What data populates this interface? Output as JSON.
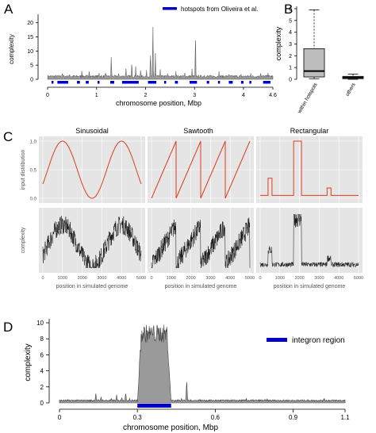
{
  "panels": {
    "A": {
      "letter": "A",
      "xlabel": "chromosome position, Mbp",
      "ylabel": "complexity",
      "legend": "hotspots from Oliveira et al.",
      "x_ticks": [
        "0",
        "1",
        "2",
        "3",
        "4",
        "4.6"
      ],
      "y_ticks": [
        "0",
        "5",
        "10",
        "15",
        "20"
      ]
    },
    "B": {
      "letter": "B",
      "ylabel": "complexity",
      "categories": [
        "within hotspots",
        "others"
      ],
      "y_ticks": [
        "0",
        "1",
        "2",
        "3",
        "4",
        "5",
        "6"
      ]
    },
    "C": {
      "letter": "C",
      "titles": [
        "Sinusoidal",
        "Sawtooth",
        "Rectangular"
      ],
      "top_ylabel": "input distribution",
      "bottom_ylabel": "complexity",
      "xlabel": "position in simulated genome",
      "top_y_ticks": [
        "0.0",
        "0.5",
        "1.0"
      ],
      "x_ticks": [
        "0",
        "1000",
        "2000",
        "3000",
        "4000",
        "5000"
      ]
    },
    "D": {
      "letter": "D",
      "xlabel": "chromosome position, Mbp",
      "ylabel": "complexity",
      "legend": "integron region",
      "x_ticks": [
        "0",
        "0.3",
        "0.6",
        "0.9",
        "1.1"
      ],
      "y_ticks": [
        "0",
        "2",
        "4",
        "6",
        "8",
        "10"
      ]
    }
  },
  "colors": {
    "hotspot_blue": "#0000cc",
    "input_red": "#e03b1e",
    "panel_bg": "#e5e5e5",
    "area_gray": "#9a9a9a",
    "box_fill": "#bdbdbd"
  },
  "chart_data": [
    {
      "type": "area",
      "panel": "A",
      "xlabel": "chromosome position, Mbp",
      "ylabel": "complexity",
      "xlim": [
        0,
        4.6
      ],
      "ylim": [
        0,
        23
      ],
      "series": [
        {
          "name": "hotspots from Oliveira et al."
        }
      ],
      "peaks": [
        {
          "x": 0.3,
          "y": 3.0
        },
        {
          "x": 0.45,
          "y": 2.0
        },
        {
          "x": 0.7,
          "y": 3.5
        },
        {
          "x": 0.85,
          "y": 4.0
        },
        {
          "x": 1.05,
          "y": 2.5
        },
        {
          "x": 1.18,
          "y": 3.0
        },
        {
          "x": 1.3,
          "y": 9.5
        },
        {
          "x": 1.45,
          "y": 3.0
        },
        {
          "x": 1.6,
          "y": 4.5
        },
        {
          "x": 1.72,
          "y": 7.0
        },
        {
          "x": 1.8,
          "y": 5.0
        },
        {
          "x": 1.9,
          "y": 4.0
        },
        {
          "x": 2.02,
          "y": 3.5
        },
        {
          "x": 2.1,
          "y": 11.0
        },
        {
          "x": 2.15,
          "y": 22.5
        },
        {
          "x": 2.2,
          "y": 10.5
        },
        {
          "x": 2.3,
          "y": 3.5
        },
        {
          "x": 2.45,
          "y": 2.5
        },
        {
          "x": 2.62,
          "y": 3.0
        },
        {
          "x": 2.8,
          "y": 2.5
        },
        {
          "x": 2.95,
          "y": 4.0
        },
        {
          "x": 3.02,
          "y": 18.0
        },
        {
          "x": 3.2,
          "y": 2.0
        },
        {
          "x": 3.5,
          "y": 3.0
        },
        {
          "x": 3.7,
          "y": 2.5
        },
        {
          "x": 3.95,
          "y": 2.0
        },
        {
          "x": 4.15,
          "y": 2.5
        },
        {
          "x": 4.35,
          "y": 3.0
        },
        {
          "x": 4.5,
          "y": 2.5
        }
      ],
      "hotspots": [
        [
          0.08,
          0.12
        ],
        [
          0.2,
          0.42
        ],
        [
          0.6,
          0.66
        ],
        [
          0.78,
          0.84
        ],
        [
          1.02,
          1.06
        ],
        [
          1.28,
          1.36
        ],
        [
          1.52,
          1.86
        ],
        [
          2.05,
          2.22
        ],
        [
          2.38,
          2.42
        ],
        [
          2.6,
          2.66
        ],
        [
          2.9,
          3.05
        ],
        [
          3.25,
          3.3
        ],
        [
          3.48,
          3.52
        ],
        [
          3.7,
          3.78
        ],
        [
          3.95,
          4.0
        ],
        [
          4.12,
          4.16
        ],
        [
          4.4,
          4.55
        ]
      ]
    },
    {
      "type": "box",
      "panel": "B",
      "ylabel": "complexity",
      "categories": [
        "within hotspots",
        "others"
      ],
      "ylim": [
        0,
        6.2
      ],
      "boxes": [
        {
          "whisker_low": 0.05,
          "q1": 0.2,
          "median": 0.7,
          "q3": 2.6,
          "whisker_high": 5.9
        },
        {
          "whisker_low": 0.0,
          "q1": 0.05,
          "median": 0.15,
          "q3": 0.25,
          "whisker_high": 0.45
        }
      ]
    },
    {
      "type": "line",
      "panel": "C",
      "titles": [
        "Sinusoidal",
        "Sawtooth",
        "Rectangular"
      ],
      "xlabel": "position in simulated genome",
      "top_ylabel": "input distribution",
      "bottom_ylabel": "complexity",
      "xlim": [
        0,
        5000
      ],
      "top_ylim": [
        0,
        1
      ],
      "rectangular_segments": [
        {
          "x": [
            0,
            400
          ],
          "y": 0.05
        },
        {
          "x": [
            400,
            600
          ],
          "y": 0.35
        },
        {
          "x": [
            600,
            1700
          ],
          "y": 0.05
        },
        {
          "x": [
            1700,
            2100
          ],
          "y": 1.0
        },
        {
          "x": [
            2100,
            3400
          ],
          "y": 0.05
        },
        {
          "x": [
            3400,
            3600
          ],
          "y": 0.18
        },
        {
          "x": [
            3600,
            5000
          ],
          "y": 0.05
        }
      ]
    },
    {
      "type": "area",
      "panel": "D",
      "xlabel": "chromosome position, Mbp",
      "ylabel": "complexity",
      "xlim": [
        0,
        1.1
      ],
      "ylim": [
        0,
        10.5
      ],
      "series": [
        {
          "name": "integron region"
        }
      ],
      "integron_region": [
        0.3,
        0.43
      ],
      "plateau_max": 9.8
    }
  ]
}
